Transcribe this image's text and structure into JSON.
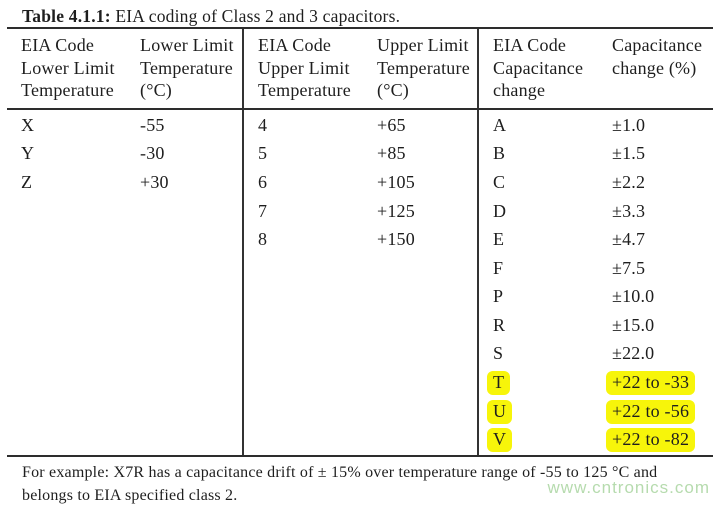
{
  "title": {
    "prefix": "Table 4.1.1:",
    "text": " EIA coding of Class 2 and 3 capacitors."
  },
  "table": {
    "groups": [
      {
        "code_header": "EIA Code\nLower Limit\nTemperature",
        "value_header": "Lower Limit\nTemperature\n(°C)"
      },
      {
        "code_header": "EIA Code\nUpper Limit\nTemperature",
        "value_header": "Upper Limit\nTemperature\n(°C)"
      },
      {
        "code_header": "EIA Code\nCapacitance\nchange",
        "value_header": "Capacitance\nchange (%)"
      }
    ],
    "lower_limit_rows": [
      {
        "code": "X",
        "value": "-55"
      },
      {
        "code": "Y",
        "value": "-30"
      },
      {
        "code": "Z",
        "value": "+30"
      }
    ],
    "upper_limit_rows": [
      {
        "code": "4",
        "value": "+65"
      },
      {
        "code": "5",
        "value": "+85"
      },
      {
        "code": "6",
        "value": "+105"
      },
      {
        "code": "7",
        "value": "+125"
      },
      {
        "code": "8",
        "value": "+150"
      }
    ],
    "capacitance_change_rows": [
      {
        "code": "A",
        "value": "±1.0",
        "highlight": false
      },
      {
        "code": "B",
        "value": "±1.5",
        "highlight": false
      },
      {
        "code": "C",
        "value": "±2.2",
        "highlight": false
      },
      {
        "code": "D",
        "value": "±3.3",
        "highlight": false
      },
      {
        "code": "E",
        "value": "±4.7",
        "highlight": false
      },
      {
        "code": "F",
        "value": "±7.5",
        "highlight": false
      },
      {
        "code": "P",
        "value": "±10.0",
        "highlight": false
      },
      {
        "code": "R",
        "value": "±15.0",
        "highlight": false
      },
      {
        "code": "S",
        "value": "±22.0",
        "highlight": false
      },
      {
        "code": "T",
        "value": "+22 to -33",
        "highlight": true
      },
      {
        "code": "U",
        "value": "+22 to -56",
        "highlight": true
      },
      {
        "code": "V",
        "value": "+22 to -82",
        "highlight": true
      }
    ]
  },
  "footer": {
    "text": "For example: X7R has a capacitance drift of ± 15% over temperature range of -55 to 125 °C and\nbelongs to EIA specified class 2."
  },
  "watermark": "www.cntronics.com",
  "colors": {
    "highlight": "#f7f50a",
    "watermark": "#b6dbae"
  }
}
